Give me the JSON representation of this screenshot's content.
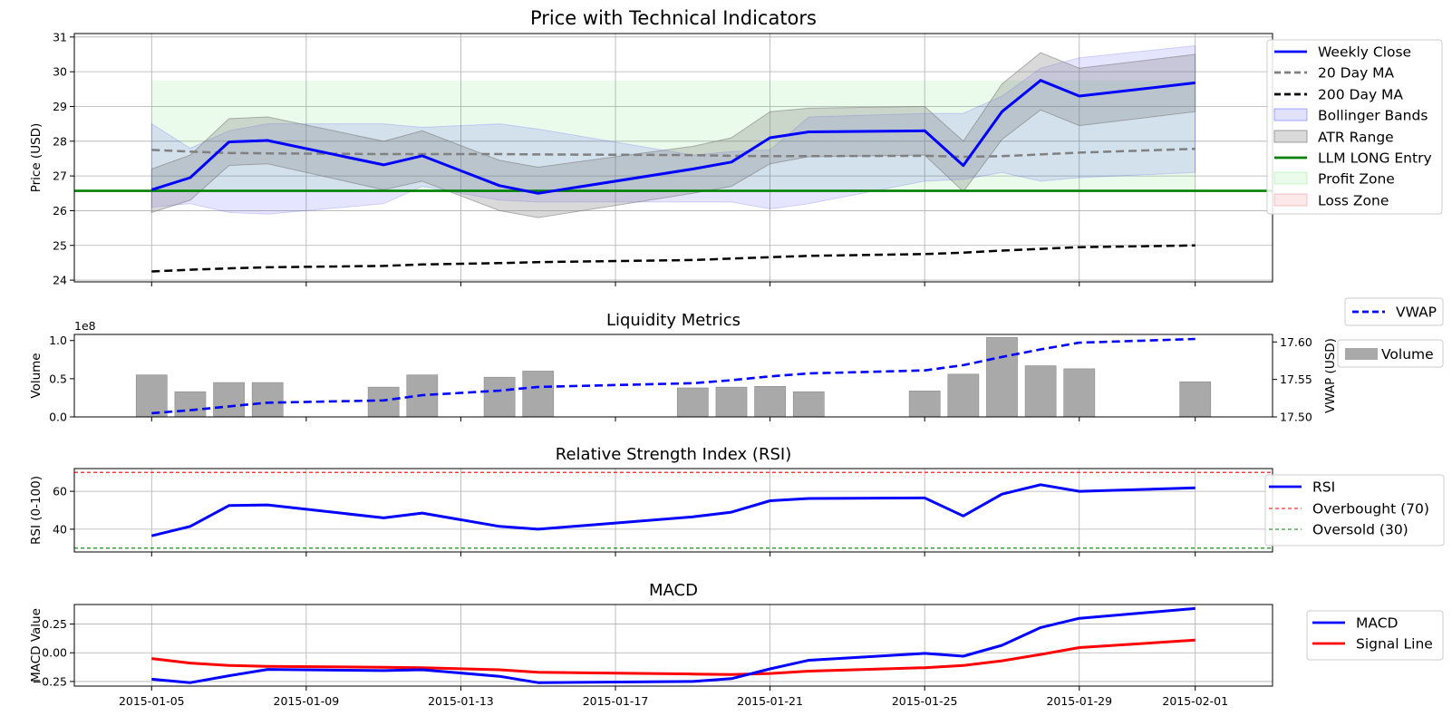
{
  "colors": {
    "close": "#0000ff",
    "ma20": "#808080",
    "ma200": "#000000",
    "boll_fill": "#0000ff",
    "atr_fill": "#808080",
    "entry": "#008000",
    "profit_fill": "#00c800",
    "loss_fill": "#f08080",
    "volume": "#a9a9a9",
    "vwap": "#0000ff",
    "rsi": "#0000ff",
    "overbought": "#ff0000",
    "oversold": "#008000",
    "macd": "#0000ff",
    "signal": "#ff0000"
  },
  "x_axis": {
    "tick_labels": [
      "2015-01-05",
      "2015-01-09",
      "2015-01-13",
      "2015-01-17",
      "2015-01-21",
      "2015-01-25",
      "2015-01-29",
      "2015-02-01"
    ],
    "tick_dates": [
      "2015-01-05",
      "2015-01-09",
      "2015-01-13",
      "2015-01-17",
      "2015-01-21",
      "2015-01-25",
      "2015-01-29",
      "2015-02-01"
    ],
    "range": [
      "2015-01-03",
      "2015-02-03"
    ]
  },
  "chart_data": [
    {
      "type": "line",
      "title": "Price with Technical Indicators",
      "ylabel": "Price (USD)",
      "ylim": [
        23.95,
        31.1
      ],
      "yticks": [
        24,
        25,
        26,
        27,
        28,
        29,
        30,
        31
      ],
      "grid": true,
      "legend_position": "right",
      "x": [
        "2015-01-05",
        "2015-01-06",
        "2015-01-07",
        "2015-01-08",
        "2015-01-11",
        "2015-01-12",
        "2015-01-14",
        "2015-01-15",
        "2015-01-19",
        "2015-01-20",
        "2015-01-21",
        "2015-01-22",
        "2015-01-25",
        "2015-01-26",
        "2015-01-27",
        "2015-01-28",
        "2015-01-29",
        "2015-02-01"
      ],
      "series": [
        {
          "name": "Weekly Close",
          "values": [
            26.6,
            26.95,
            27.98,
            28.02,
            27.32,
            27.58,
            26.72,
            26.5,
            27.2,
            27.4,
            28.1,
            28.27,
            28.3,
            27.3,
            28.85,
            29.75,
            29.3,
            29.68
          ]
        },
        {
          "name": "20 Day MA",
          "values": [
            27.75,
            27.7,
            27.66,
            27.65,
            27.63,
            27.63,
            27.63,
            27.62,
            27.6,
            27.58,
            27.57,
            27.57,
            27.58,
            27.55,
            27.57,
            27.62,
            27.67,
            27.78
          ]
        },
        {
          "name": "200 Day MA",
          "values": [
            24.25,
            24.3,
            24.34,
            24.37,
            24.41,
            24.45,
            24.49,
            24.52,
            24.58,
            24.62,
            24.66,
            24.7,
            24.75,
            24.79,
            24.85,
            24.9,
            24.95,
            25.0
          ]
        },
        {
          "name": "Bollinger Bands",
          "upper": [
            28.5,
            27.8,
            28.3,
            28.5,
            28.5,
            28.4,
            28.5,
            28.35,
            27.6,
            27.7,
            27.75,
            28.7,
            28.8,
            28.8,
            29.3,
            30.1,
            30.4,
            30.75
          ],
          "lower": [
            26.1,
            26.2,
            25.95,
            25.9,
            26.2,
            26.7,
            26.3,
            26.25,
            26.25,
            26.25,
            26.05,
            26.2,
            26.85,
            26.9,
            27.1,
            26.85,
            26.95,
            27.1
          ]
        },
        {
          "name": "ATR Range",
          "upper": [
            27.2,
            27.6,
            28.65,
            28.7,
            28.0,
            28.3,
            27.45,
            27.25,
            27.85,
            28.1,
            28.85,
            28.95,
            29.0,
            28.0,
            29.65,
            30.55,
            30.1,
            30.5
          ],
          "lower": [
            25.95,
            26.3,
            27.3,
            27.35,
            26.6,
            26.85,
            26.0,
            25.8,
            26.5,
            26.7,
            27.35,
            27.55,
            27.6,
            26.55,
            28.05,
            28.9,
            28.45,
            28.85
          ]
        },
        {
          "name": "LLM LONG Entry",
          "value": 26.57
        },
        {
          "name": "Profit Zone",
          "from": 26.57,
          "to": 29.75
        },
        {
          "name": "Loss Zone",
          "from": 24.27,
          "to": 26.57
        }
      ]
    },
    {
      "type": "bar",
      "title": "Liquidity Metrics",
      "ylabel": "Volume",
      "y_multiplier_label": "1e8",
      "ylim": [
        0,
        1.08
      ],
      "yticks": [
        0.0,
        0.5,
        1.0
      ],
      "ytick_labels": [
        "0.0",
        "0.5",
        "1.0"
      ],
      "y2label": "VWAP (USD)",
      "y2lim": [
        17.5,
        17.61
      ],
      "y2ticks": [
        17.5,
        17.55,
        17.6
      ],
      "y2tick_labels": [
        "17.50",
        "17.55",
        "17.60"
      ],
      "grid": false,
      "legend_position": "outside-right",
      "volume": {
        "name": "Volume",
        "x": [
          "2015-01-05",
          "2015-01-06",
          "2015-01-07",
          "2015-01-08",
          "2015-01-11",
          "2015-01-12",
          "2015-01-14",
          "2015-01-15",
          "2015-01-19",
          "2015-01-20",
          "2015-01-21",
          "2015-01-22",
          "2015-01-25",
          "2015-01-26",
          "2015-01-27",
          "2015-01-28",
          "2015-01-29",
          "2015-02-01"
        ],
        "values": [
          0.55,
          0.33,
          0.45,
          0.45,
          0.39,
          0.55,
          0.52,
          0.6,
          0.38,
          0.39,
          0.4,
          0.33,
          0.34,
          0.56,
          1.04,
          0.67,
          0.63,
          0.46
        ]
      },
      "vwap": {
        "name": "VWAP",
        "x": [
          "2015-01-05",
          "2015-01-06",
          "2015-01-07",
          "2015-01-08",
          "2015-01-11",
          "2015-01-12",
          "2015-01-14",
          "2015-01-15",
          "2015-01-19",
          "2015-01-20",
          "2015-01-21",
          "2015-01-22",
          "2015-01-25",
          "2015-01-26",
          "2015-01-27",
          "2015-01-28",
          "2015-01-29",
          "2015-02-01"
        ],
        "values": [
          17.505,
          17.509,
          17.514,
          17.519,
          17.522,
          17.529,
          17.535,
          17.54,
          17.545,
          17.549,
          17.554,
          17.558,
          17.562,
          17.569,
          17.58,
          17.59,
          17.599,
          17.604
        ]
      }
    },
    {
      "type": "line",
      "title": "Relative Strength Index (RSI)",
      "ylabel": "RSI (0-100)",
      "ylim": [
        28,
        72
      ],
      "yticks": [
        40,
        60
      ],
      "grid": true,
      "legend_position": "right",
      "x": [
        "2015-01-05",
        "2015-01-06",
        "2015-01-07",
        "2015-01-08",
        "2015-01-11",
        "2015-01-12",
        "2015-01-14",
        "2015-01-15",
        "2015-01-19",
        "2015-01-20",
        "2015-01-21",
        "2015-01-22",
        "2015-01-25",
        "2015-01-26",
        "2015-01-27",
        "2015-01-28",
        "2015-01-29",
        "2015-02-01"
      ],
      "series": [
        {
          "name": "RSI",
          "values": [
            36.5,
            41.5,
            52.5,
            52.8,
            46.0,
            48.5,
            41.5,
            40.0,
            46.5,
            49.0,
            55.0,
            56.2,
            56.5,
            47.0,
            58.5,
            63.5,
            60.0,
            61.8
          ]
        },
        {
          "name": "Overbought (70)",
          "value": 70
        },
        {
          "name": "Oversold (30)",
          "value": 30
        }
      ]
    },
    {
      "type": "line",
      "title": "MACD",
      "ylabel": "MACD Value",
      "ylim": [
        -0.29,
        0.42
      ],
      "yticks": [
        -0.25,
        0.0,
        0.25
      ],
      "ytick_labels": [
        "−0.25",
        "0.00",
        "0.25"
      ],
      "grid": true,
      "legend_position": "outside-right",
      "x": [
        "2015-01-05",
        "2015-01-06",
        "2015-01-07",
        "2015-01-08",
        "2015-01-11",
        "2015-01-12",
        "2015-01-14",
        "2015-01-15",
        "2015-01-19",
        "2015-01-20",
        "2015-01-21",
        "2015-01-22",
        "2015-01-25",
        "2015-01-26",
        "2015-01-27",
        "2015-01-28",
        "2015-01-29",
        "2015-02-01"
      ],
      "series": [
        {
          "name": "MACD",
          "values": [
            -0.23,
            -0.26,
            -0.2,
            -0.145,
            -0.155,
            -0.148,
            -0.205,
            -0.26,
            -0.25,
            -0.225,
            -0.14,
            -0.065,
            -0.005,
            -0.03,
            0.065,
            0.22,
            0.3,
            0.385
          ]
        },
        {
          "name": "Signal Line",
          "values": [
            -0.05,
            -0.09,
            -0.11,
            -0.118,
            -0.126,
            -0.13,
            -0.148,
            -0.17,
            -0.185,
            -0.19,
            -0.18,
            -0.16,
            -0.13,
            -0.11,
            -0.07,
            -0.015,
            0.045,
            0.11
          ]
        }
      ]
    }
  ]
}
